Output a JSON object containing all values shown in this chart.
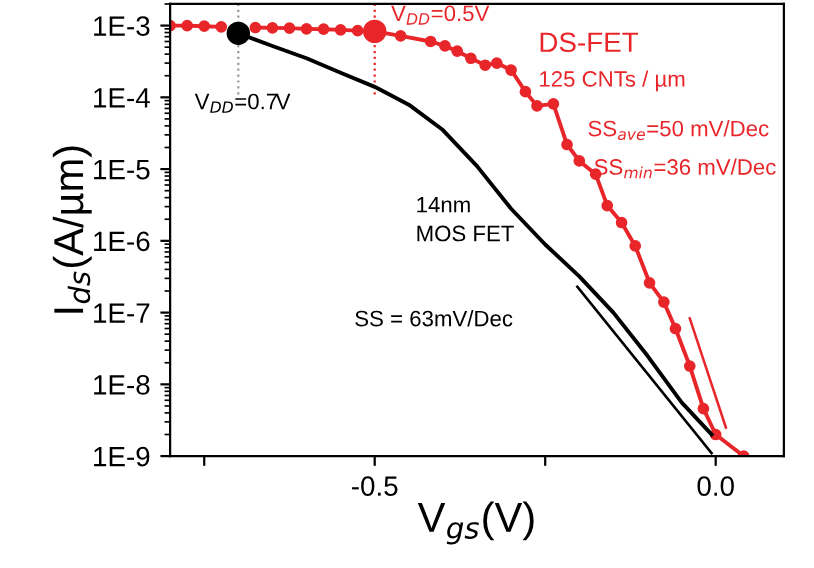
{
  "chart_data": {
    "type": "line",
    "xlabel": "V$_{gs}$(V)",
    "ylabel": "I$_{ds}$(A/µm)",
    "xlim": [
      -0.8,
      0.1
    ],
    "xticks": [
      {
        "value": -0.75,
        "label": null
      },
      -0.5,
      {
        "value": -0.25,
        "label": null
      },
      {
        "value": 0,
        "label": "0.0"
      }
    ],
    "log": "y",
    "ylim": [
      1e-09,
      0.002
    ],
    "yticks": [
      {
        "value": 1e-09,
        "label": "1E-9"
      },
      {
        "value": 1e-08,
        "label": "1E-8"
      },
      {
        "value": 1e-07,
        "label": "1E-7"
      },
      {
        "value": 1e-06,
        "label": "1E-6"
      },
      {
        "value": 1e-05,
        "label": "1E-5"
      },
      {
        "value": 0.0001,
        "label": "1E-4"
      },
      {
        "value": 0.001,
        "label": "1E-3"
      }
    ],
    "grid": false,
    "series": [
      {
        "color": "#e8262a",
        "marker": "circle",
        "x": [
          -0.8,
          -0.775,
          -0.75,
          -0.725,
          -0.7,
          -0.675,
          -0.65,
          -0.625,
          -0.6,
          -0.575,
          -0.55,
          -0.525,
          -0.5,
          -0.462,
          -0.418,
          -0.397,
          -0.379,
          -0.359,
          -0.338,
          -0.321,
          -0.3,
          -0.279,
          -0.262,
          -0.238,
          -0.218,
          -0.2,
          -0.176,
          -0.159,
          -0.138,
          -0.118,
          -0.097,
          -0.076,
          -0.059,
          -0.038,
          -0.018,
          0.0,
          0.041
        ],
        "values": [
          0.001,
          0.001,
          0.00098,
          0.00096,
          null,
          0.00094,
          0.00093,
          0.00092,
          0.0009,
          0.00089,
          0.00087,
          0.00085,
          0.00083,
          0.00072,
          0.0006,
          0.00052,
          0.00044,
          0.00035,
          0.00028,
          0.0003,
          0.00024,
          0.00012,
          7.6e-05,
          8.1e-05,
          2.2e-05,
          1.3e-05,
          8.5e-06,
          3.1e-06,
          1.8e-06,
          8.5e-07,
          2.6e-07,
          1.4e-07,
          6e-08,
          1.8e-08,
          4.6e-09,
          2e-09,
          1e-09
        ]
      },
      {
        "color": "#000000",
        "marker": "none",
        "x": [
          -0.7,
          -0.65,
          -0.6,
          -0.55,
          -0.5,
          -0.45,
          -0.4,
          -0.35,
          -0.3,
          -0.25,
          -0.2,
          -0.15,
          -0.1,
          -0.05,
          -0.006
        ],
        "values": [
          0.00078,
          0.00052,
          0.00035,
          0.00022,
          0.00014,
          7.9e-05,
          3.5e-05,
          1.1e-05,
          2.8e-06,
          8.9e-07,
          3.2e-07,
          1e-07,
          2.5e-08,
          5.6e-09,
          2e-09
        ]
      },
      {
        "color": "#000000",
        "marker": "none",
        "x": [
          -0.203,
          -0.006
        ],
        "values": [
          2.3e-07,
          1.1e-09
        ]
      },
      {
        "color": "#e8262a",
        "marker": "none",
        "x": [
          -0.038,
          0.015
        ],
        "values": [
          8.3e-08,
          2.5e-09
        ]
      },
      {
        "type": "scatter",
        "color": "#e8262a",
        "marker": "circle",
        "x": [
          -0.5
        ],
        "values": [
          0.00083
        ]
      },
      {
        "type": "scatter",
        "color": "#000000",
        "marker": "circle",
        "x": [
          -0.7
        ],
        "values": [
          0.00078
        ]
      }
    ],
    "ref_lines": [
      {
        "axis": "x",
        "value": -0.7,
        "color": "#999999",
        "line_style": "dotted"
      },
      {
        "axis": "x",
        "value": -0.5,
        "color": "#e8262a",
        "line_style": "dotted"
      }
    ],
    "annotations": [
      "V$_{DD}$=0.7V",
      "V$_{DD}$=0.5V",
      "DS-FET",
      "125 CNTs / µm",
      "SS$_{ave}$=50 mV/Dec",
      "SS$_{min}$=36 mV/Dec",
      "14nm\nMOS FET",
      "SS = 63mV/Dec"
    ]
  }
}
